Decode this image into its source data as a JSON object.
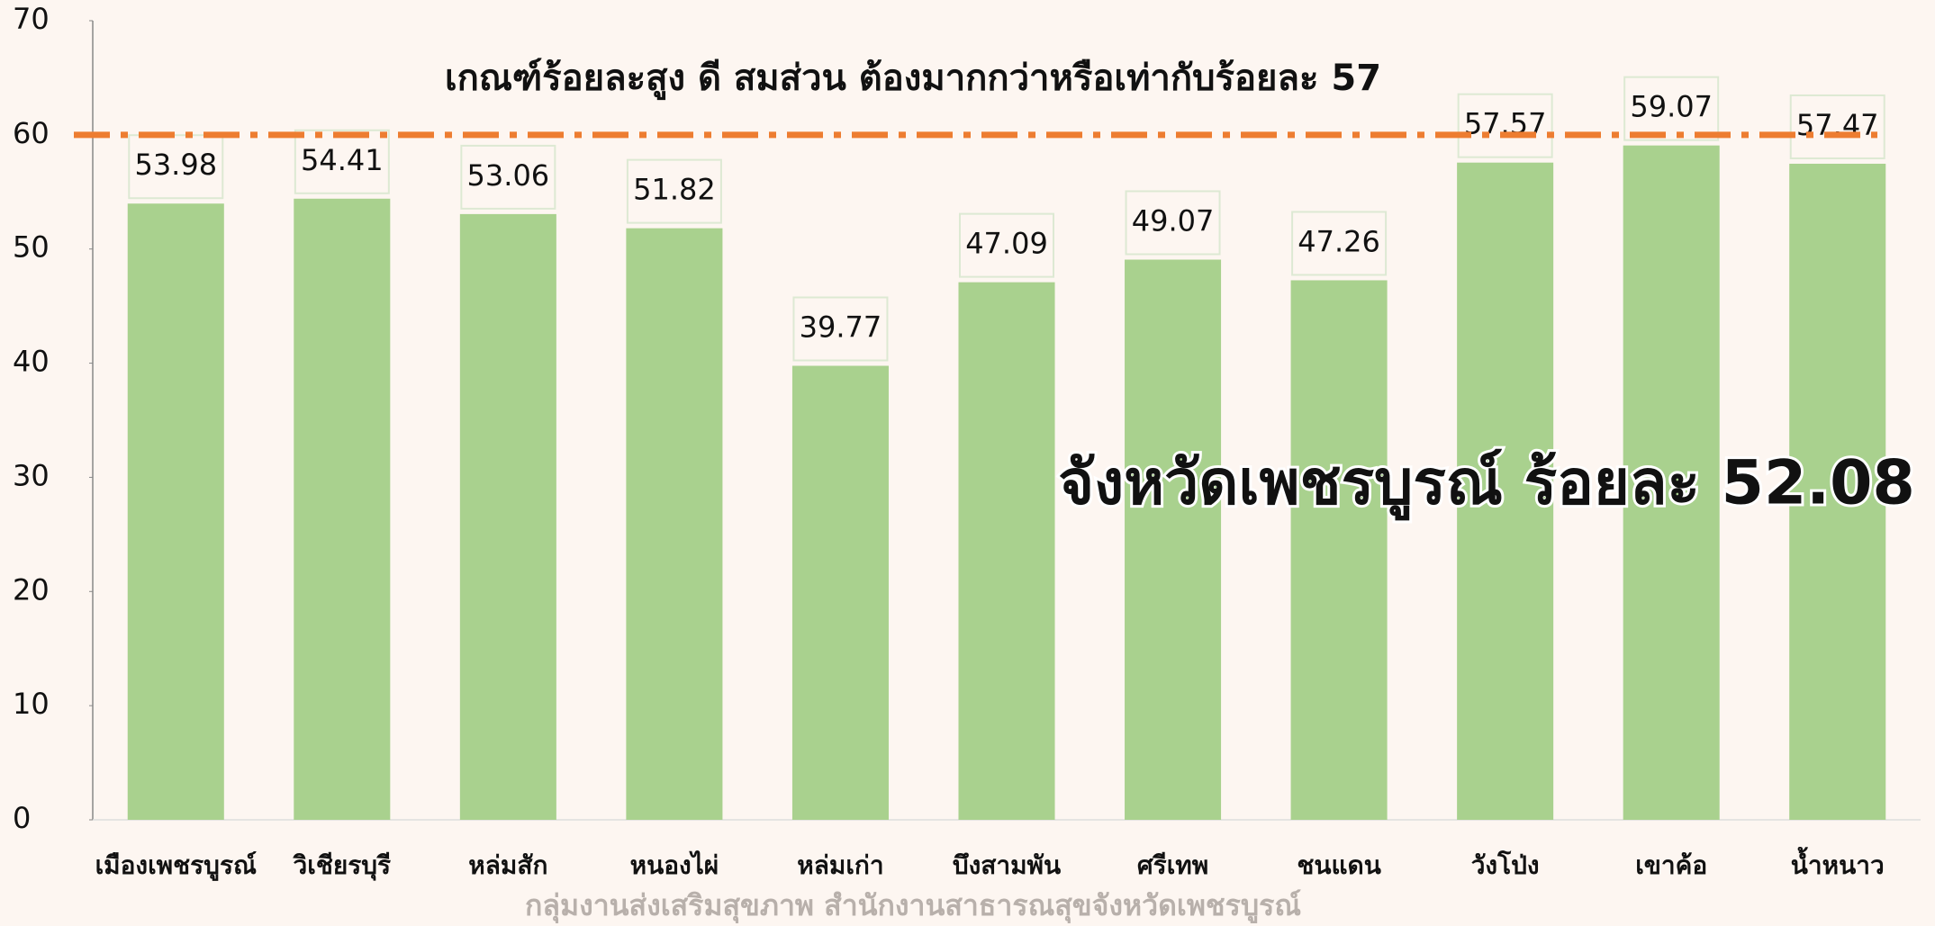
{
  "chart_data": {
    "type": "bar",
    "title": "เกณฑ์ร้อยละสูง ดี สมส่วน ต้องมากกว่าหรือเท่ากับร้อยละ 57",
    "annotation": "จังหวัดเพชรบูรณ์ ร้อยละ 52.08",
    "footer": "กลุ่มงานส่งเสริมสุขภาพ สำนักงานสาธารณสุขจังหวัดเพชรบูรณ์",
    "categories": [
      "เมืองเพชรบูรณ์",
      "วิเชียรบุรี",
      "หล่มสัก",
      "หนองไผ่",
      "หล่มเก่า",
      "บึงสามพัน",
      "ศรีเทพ",
      "ชนแดน",
      "วังโป่ง",
      "เขาค้อ",
      "น้ำหนาว"
    ],
    "values": [
      53.98,
      54.41,
      53.06,
      51.82,
      39.77,
      47.09,
      49.07,
      47.26,
      57.57,
      59.07,
      57.47
    ],
    "color": "#a9d18e",
    "reference_line": 60,
    "reference_color": "#ed7d31",
    "ylim": [
      0,
      70
    ],
    "yticks": [
      0,
      10,
      20,
      30,
      40,
      50,
      60,
      70
    ],
    "grid": false
  }
}
